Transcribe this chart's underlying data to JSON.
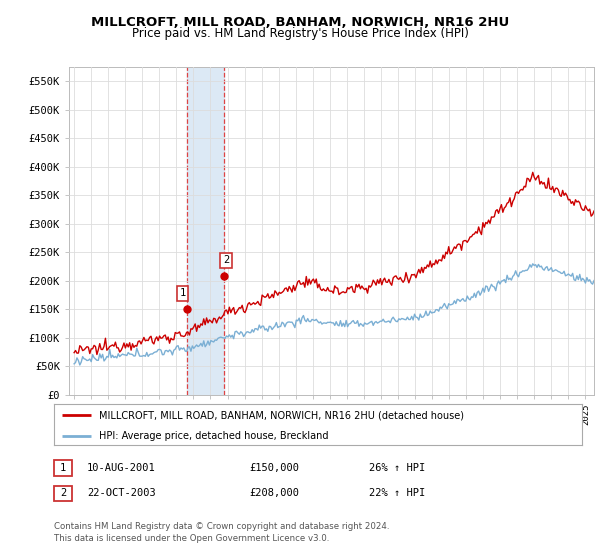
{
  "title": "MILLCROFT, MILL ROAD, BANHAM, NORWICH, NR16 2HU",
  "subtitle": "Price paid vs. HM Land Registry's House Price Index (HPI)",
  "ylim": [
    0,
    575000
  ],
  "xlim_start": 1994.7,
  "xlim_end": 2025.5,
  "red_line_color": "#cc0000",
  "blue_line_color": "#7bafd4",
  "sale1_x": 2001.62,
  "sale1_y": 150000,
  "sale2_x": 2003.81,
  "sale2_y": 208000,
  "legend_red_label": "MILLCROFT, MILL ROAD, BANHAM, NORWICH, NR16 2HU (detached house)",
  "legend_blue_label": "HPI: Average price, detached house, Breckland",
  "table_row1": [
    "1",
    "10-AUG-2001",
    "£150,000",
    "26% ↑ HPI"
  ],
  "table_row2": [
    "2",
    "22-OCT-2003",
    "£208,000",
    "22% ↑ HPI"
  ],
  "footnote": "Contains HM Land Registry data © Crown copyright and database right 2024.\nThis data is licensed under the Open Government Licence v3.0.",
  "background_color": "#ffffff",
  "grid_color": "#dddddd",
  "highlight_color": "#dce9f5",
  "vline_color": "#dd4444"
}
